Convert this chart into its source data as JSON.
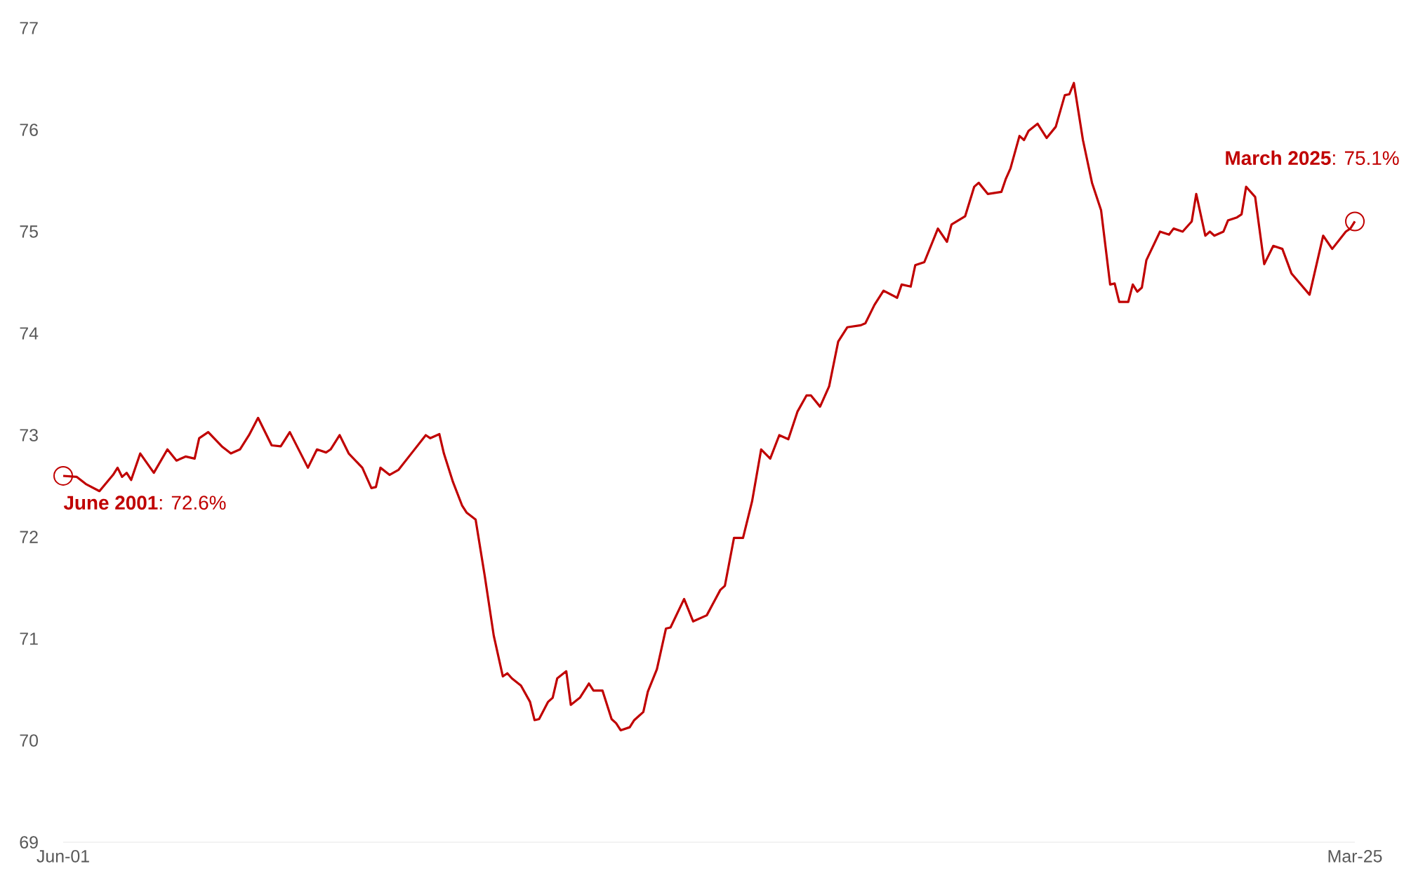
{
  "chart_data": {
    "type": "line",
    "x": [
      "2001-06",
      "2001-09",
      "2001-11",
      "2002-02",
      "2002-05",
      "2002-06",
      "2002-07",
      "2002-08",
      "2002-09",
      "2002-11",
      "2003-02",
      "2003-05",
      "2003-07",
      "2003-09",
      "2003-11",
      "2003-12",
      "2004-02",
      "2004-05",
      "2004-07",
      "2004-09",
      "2004-11",
      "2005-01",
      "2005-04",
      "2005-06",
      "2005-08",
      "2005-12",
      "2006-02",
      "2006-04",
      "2006-05",
      "2006-07",
      "2006-09",
      "2006-12",
      "2007-02",
      "2007-03",
      "2007-04",
      "2007-06",
      "2007-08",
      "2007-11",
      "2008-02",
      "2008-03",
      "2008-05",
      "2008-06",
      "2008-08",
      "2008-10",
      "2008-11",
      "2009-01",
      "2009-03",
      "2009-05",
      "2009-07",
      "2009-08",
      "2009-09",
      "2009-11",
      "2010-01",
      "2010-02",
      "2010-03",
      "2010-05",
      "2010-06",
      "2010-07",
      "2010-09",
      "2010-10",
      "2010-12",
      "2011-02",
      "2011-03",
      "2011-05",
      "2011-07",
      "2011-08",
      "2011-09",
      "2011-11",
      "2011-12",
      "2012-02",
      "2012-03",
      "2012-05",
      "2012-07",
      "2012-08",
      "2012-11",
      "2013-01",
      "2013-04",
      "2013-07",
      "2013-08",
      "2013-10",
      "2013-12",
      "2014-02",
      "2014-04",
      "2014-06",
      "2014-08",
      "2014-10",
      "2014-12",
      "2015-02",
      "2015-03",
      "2015-05",
      "2015-07",
      "2015-09",
      "2015-11",
      "2016-02",
      "2016-03",
      "2016-05",
      "2016-07",
      "2016-10",
      "2016-11",
      "2017-01",
      "2017-02",
      "2017-04",
      "2017-07",
      "2017-09",
      "2017-10",
      "2018-01",
      "2018-03",
      "2018-04",
      "2018-06",
      "2018-09",
      "2018-10",
      "2018-11",
      "2019-01",
      "2019-02",
      "2019-03",
      "2019-05",
      "2019-07",
      "2019-09",
      "2019-11",
      "2019-12",
      "2020-01",
      "2020-03",
      "2020-05",
      "2020-07",
      "2020-09",
      "2020-10",
      "2020-11",
      "2021-01",
      "2021-02",
      "2021-03",
      "2021-04",
      "2021-05",
      "2021-08",
      "2021-10",
      "2021-11",
      "2022-01",
      "2022-03",
      "2022-04",
      "2022-06",
      "2022-07",
      "2022-08",
      "2022-10",
      "2022-11",
      "2023-01",
      "2023-02",
      "2023-03",
      "2023-05",
      "2023-07",
      "2023-09",
      "2023-11",
      "2024-01",
      "2024-05",
      "2024-08",
      "2024-10",
      "2025-01",
      "2025-02",
      "2025-03"
    ],
    "values": [
      72.6,
      72.59,
      72.52,
      72.45,
      72.61,
      72.68,
      72.59,
      72.63,
      72.56,
      72.82,
      72.63,
      72.86,
      72.75,
      72.79,
      72.77,
      72.97,
      73.03,
      72.89,
      72.82,
      72.86,
      73.0,
      73.17,
      72.9,
      72.89,
      73.03,
      72.68,
      72.86,
      72.83,
      72.86,
      73.0,
      72.82,
      72.68,
      72.48,
      72.49,
      72.68,
      72.61,
      72.66,
      72.83,
      73.0,
      72.97,
      73.01,
      72.82,
      72.54,
      72.31,
      72.24,
      72.17,
      71.62,
      71.03,
      70.63,
      70.66,
      70.61,
      70.54,
      70.38,
      70.2,
      70.21,
      70.38,
      70.42,
      70.61,
      70.68,
      70.35,
      70.42,
      70.56,
      70.49,
      70.49,
      70.21,
      70.17,
      70.1,
      70.13,
      70.2,
      70.28,
      70.48,
      70.7,
      71.1,
      71.11,
      71.39,
      71.17,
      71.23,
      71.48,
      71.52,
      71.99,
      71.99,
      72.35,
      72.86,
      72.77,
      73.0,
      72.96,
      73.23,
      73.39,
      73.39,
      73.28,
      73.48,
      73.92,
      74.06,
      74.08,
      74.1,
      74.28,
      74.42,
      74.35,
      74.48,
      74.46,
      74.67,
      74.7,
      75.03,
      74.9,
      75.07,
      75.15,
      75.44,
      75.48,
      75.37,
      75.39,
      75.52,
      75.62,
      75.94,
      75.9,
      75.99,
      76.06,
      75.92,
      76.03,
      76.34,
      76.35,
      76.46,
      75.9,
      75.48,
      75.21,
      74.48,
      74.49,
      74.31,
      74.31,
      74.48,
      74.41,
      74.45,
      74.72,
      75.0,
      74.97,
      75.03,
      75.0,
      75.1,
      75.37,
      74.96,
      75.0,
      74.96,
      75.0,
      75.11,
      75.14,
      75.17,
      75.44,
      75.34,
      74.68,
      74.86,
      74.83,
      74.59,
      74.38,
      74.96,
      74.83,
      75.0,
      75.03,
      75.1
    ],
    "color": "#c00000",
    "xlim": [
      "2001-06",
      "2025-03"
    ],
    "xticks": [
      {
        "value": "2001-06",
        "label": "Jun-01"
      },
      {
        "value": "2025-03",
        "label": "Mar-25"
      }
    ],
    "ylim": [
      69,
      77
    ],
    "yticks": [
      69,
      70,
      71,
      72,
      73,
      74,
      75,
      76,
      77
    ],
    "annotations": [
      {
        "text": "**June 2001**: 72.6%",
        "x": "2001-06",
        "y": 72.6
      },
      {
        "text": "**March 2025**: 75.1%",
        "x": "2025-03",
        "y": 75.1
      }
    ]
  }
}
